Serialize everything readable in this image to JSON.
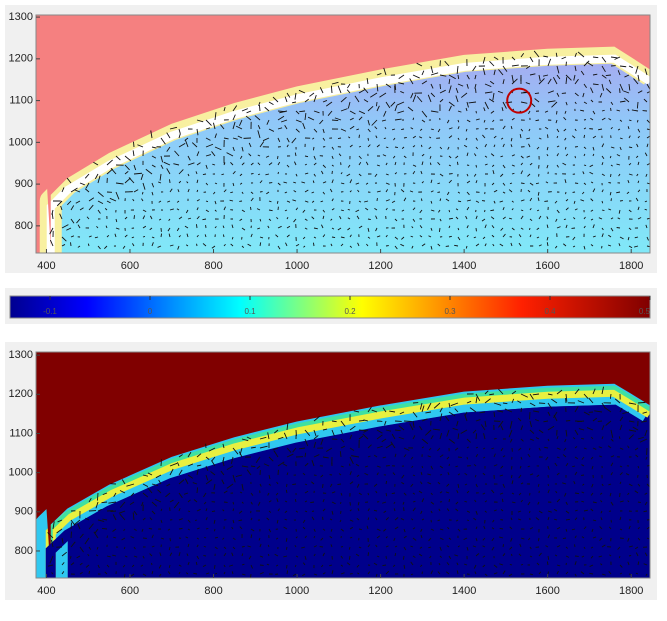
{
  "chart_data": [
    {
      "type": "vector-field",
      "colormap": "pale",
      "xlim": [
        375,
        1845
      ],
      "xticks": [
        400,
        600,
        800,
        1000,
        1200,
        1400,
        1600,
        1800
      ],
      "ylim": [
        735,
        1305
      ],
      "yticks": [
        800,
        900,
        1000,
        1100,
        1200,
        1300
      ]
    },
    {
      "type": "colorbar",
      "xlim": [
        -0.14,
        0.5
      ],
      "xticks": [
        -0.1,
        0,
        0.1,
        0.2,
        0.3,
        0.4,
        0.5
      ]
    },
    {
      "type": "vector-field",
      "colormap": "jet",
      "xlim": [
        375,
        1845
      ],
      "xticks": [
        400,
        600,
        800,
        1000,
        1200,
        1400,
        1600,
        1800
      ],
      "ylim": [
        731,
        1308
      ],
      "yticks": [
        800,
        900,
        1000,
        1100,
        1200,
        1300
      ]
    }
  ]
}
